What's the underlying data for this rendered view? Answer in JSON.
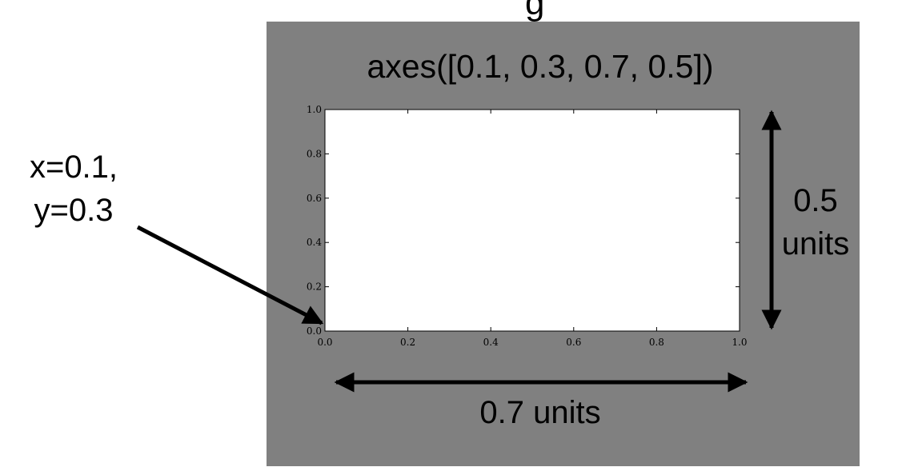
{
  "figure": {
    "background_color": "#ffffff",
    "figure_color": "#808080",
    "axes_color": "#ffffff",
    "arrow_color": "#000000",
    "title_partial": "g",
    "axes_title": "axes([0.1, 0.3, 0.7, 0.5])"
  },
  "axes": {
    "y_ticks": [
      "0.0",
      "0.2",
      "0.4",
      "0.6",
      "0.8",
      "1.0"
    ],
    "x_ticks": [
      "0.0",
      "0.2",
      "0.4",
      "0.6",
      "0.8",
      "1.0"
    ],
    "xlim": [
      0,
      1
    ],
    "ylim": [
      0,
      1
    ]
  },
  "annotations": {
    "origin_line1": "x=0.1,",
    "origin_line2": "y=0.3",
    "height_value": "0.5",
    "height_unit": "units",
    "width_label": "0.7 units"
  }
}
